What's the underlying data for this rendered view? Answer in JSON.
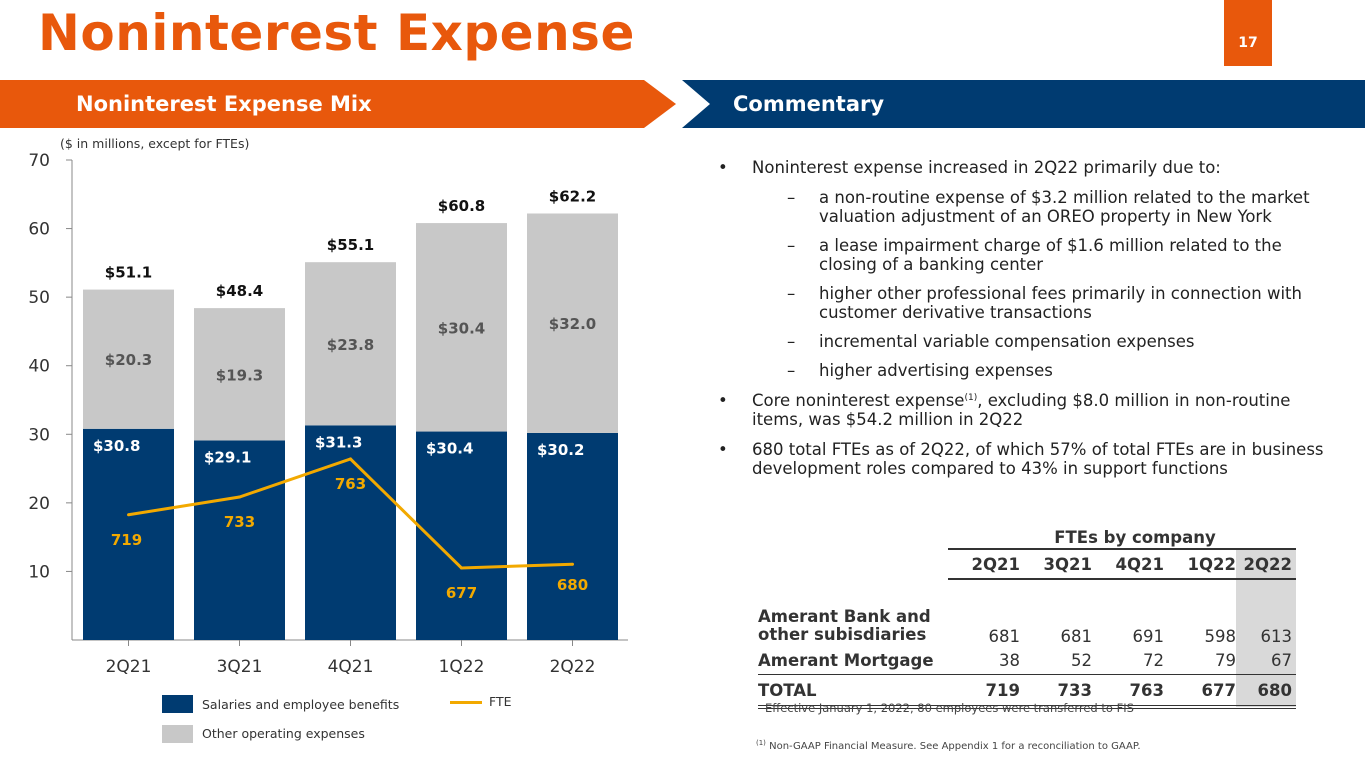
{
  "header": {
    "title": "Noninterest Expense",
    "page_number": "17"
  },
  "sections": {
    "left_title": "Noninterest Expense Mix",
    "right_title": "Commentary"
  },
  "colors": {
    "orange": "#E8580C",
    "navy": "#003B71",
    "gray": "#C8C8C8",
    "fte_line": "#F2A900"
  },
  "chart_data": {
    "type": "bar",
    "stacked": true,
    "subtitle": "($ in millions, except for FTEs)",
    "categories": [
      "2Q21",
      "3Q21",
      "4Q21",
      "1Q22",
      "2Q22"
    ],
    "series": [
      {
        "name": "Salaries and employee benefits",
        "values": [
          30.8,
          29.1,
          31.3,
          30.4,
          30.2
        ],
        "labels": [
          "$30.8",
          "$29.1",
          "$31.3",
          "$30.4",
          "$30.2"
        ]
      },
      {
        "name": "Other operating expenses",
        "values": [
          20.3,
          19.3,
          23.8,
          30.4,
          32.0
        ],
        "labels": [
          "$20.3",
          "$19.3",
          "$23.8",
          "$30.4",
          "$32.0"
        ]
      }
    ],
    "totals": [
      51.1,
      48.4,
      55.1,
      60.8,
      62.2
    ],
    "total_labels": [
      "$51.1",
      "$48.4",
      "$55.1",
      "$60.8",
      "$62.2"
    ],
    "line_series": {
      "name": "FTE",
      "values": [
        719,
        733,
        763,
        677,
        680
      ],
      "labels": [
        "719",
        "733",
        "763",
        "677",
        "680"
      ]
    },
    "ylim": [
      0,
      70
    ],
    "yticks": [
      "10",
      "20",
      "30",
      "40",
      "50",
      "60",
      "70"
    ],
    "legend_position": "bottom"
  },
  "commentary": {
    "bullet1": "Noninterest expense increased in 2Q22 primarily due to:",
    "subs": [
      "a non-routine expense of $3.2 million related to the market valuation adjustment of an OREO property in New York",
      "a lease impairment charge of $1.6 million related to the closing of a banking center",
      "higher other professional fees primarily in connection with customer derivative transactions",
      "incremental variable compensation expenses",
      "higher advertising expenses"
    ],
    "bullet2_pre": "Core noninterest expense",
    "bullet2_sup": "(1)",
    "bullet2_post": ", excluding $8.0 million in non-routine items, was $54.2 million in 2Q22",
    "bullet3": "680 total FTEs as of 2Q22, of which 57% of total FTEs are in business development roles compared to 43% in support functions",
    "bullet_marker": "•",
    "dash_marker": "–"
  },
  "fte_table": {
    "title": "FTEs by company",
    "columns": [
      "2Q21",
      "3Q21",
      "4Q21",
      "1Q22",
      "2Q22"
    ],
    "rows": [
      {
        "label_line1": "Amerant Bank and",
        "label_line2": "other subisdiaries",
        "values": [
          "681",
          "681",
          "691",
          "598",
          "613"
        ]
      },
      {
        "label": "Amerant Mortgage",
        "values": [
          "38",
          "52",
          "72",
          "79",
          "67"
        ]
      },
      {
        "label": "TOTAL",
        "values": [
          "719",
          "733",
          "763",
          "677",
          "680"
        ]
      }
    ]
  },
  "notes": {
    "effective": "Effective January 1, 2022, 80 employees were transferred to FIS",
    "footnote_sup": "(1)",
    "footnote": "Non-GAAP Financial Measure. See Appendix 1 for a reconciliation to GAAP."
  }
}
